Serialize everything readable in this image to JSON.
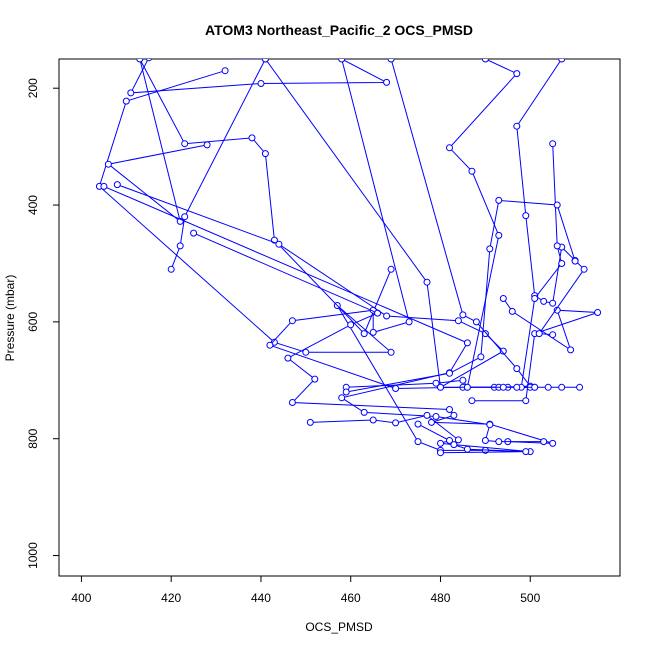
{
  "chart_data": {
    "type": "line",
    "title": "ATOM3 Northeast_Pacific_2 OCS_PMSD",
    "xlabel": "OCS_PMSD",
    "ylabel": "Pressure (mbar)",
    "xlim": [
      395,
      520
    ],
    "ylim": [
      1035,
      150
    ],
    "y_reversed": true,
    "x_ticks": [
      400,
      420,
      440,
      460,
      480,
      500
    ],
    "y_ticks": [
      200,
      400,
      600,
      800,
      1000
    ],
    "grid": false,
    "marker": "open-circle",
    "color": "#0000ff",
    "series": [
      {
        "points": [
          [
            432,
            170
          ],
          [
            410,
            222
          ],
          [
            404,
            368
          ],
          [
            443,
            635
          ],
          [
            450,
            652
          ],
          [
            469,
            652
          ],
          [
            457,
            572
          ],
          [
            475,
            805
          ],
          [
            480,
            820
          ],
          [
            490,
            820
          ],
          [
            500,
            822
          ],
          [
            480,
            808
          ],
          [
            482,
            803
          ],
          [
            475,
            775
          ]
        ]
      },
      {
        "points": [
          [
            428,
            297
          ],
          [
            406,
            330
          ],
          [
            422,
            428
          ],
          [
            413,
            150
          ],
          [
            423,
            295
          ],
          [
            438,
            285
          ],
          [
            441,
            312
          ],
          [
            443,
            460
          ],
          [
            463,
            620
          ],
          [
            469,
            510
          ]
        ]
      },
      {
        "points": [
          [
            420,
            510
          ],
          [
            422,
            470
          ],
          [
            423,
            420
          ],
          [
            441,
            150
          ],
          [
            415,
            148
          ],
          [
            411,
            208
          ],
          [
            440,
            192
          ],
          [
            468,
            190
          ],
          [
            458,
            150
          ],
          [
            473,
            600
          ],
          [
            465,
            618
          ],
          [
            465,
            580
          ],
          [
            447,
            598
          ],
          [
            442,
            640
          ],
          [
            470,
            714
          ],
          [
            485,
            712
          ]
        ]
      },
      {
        "points": [
          [
            425,
            448
          ],
          [
            466,
            585
          ],
          [
            460,
            605
          ],
          [
            446,
            662
          ],
          [
            452,
            698
          ],
          [
            447,
            738
          ],
          [
            482,
            750
          ],
          [
            483,
            760
          ],
          [
            478,
            772
          ],
          [
            491,
            775
          ],
          [
            505,
            808
          ],
          [
            495,
            805
          ]
        ]
      },
      {
        "points": [
          [
            408,
            365
          ],
          [
            444,
            467
          ],
          [
            468,
            590
          ],
          [
            484,
            598
          ],
          [
            490,
            620
          ],
          [
            494,
            650
          ],
          [
            480,
            712
          ]
        ]
      },
      {
        "points": [
          [
            405,
            368
          ],
          [
            486,
            636
          ],
          [
            482,
            687
          ],
          [
            458,
            730
          ],
          [
            463,
            755
          ],
          [
            479,
            762
          ],
          [
            491,
            776
          ],
          [
            490,
            803
          ],
          [
            493,
            805
          ],
          [
            503,
            805
          ]
        ]
      },
      {
        "points": [
          [
            441,
            150
          ],
          [
            477,
            532
          ],
          [
            480,
            712
          ],
          [
            492,
            712
          ],
          [
            495,
            712
          ],
          [
            501,
            712
          ],
          [
            504,
            712
          ],
          [
            507,
            712
          ],
          [
            511,
            712
          ]
        ]
      },
      {
        "points": [
          [
            494,
            560
          ],
          [
            496,
            582
          ],
          [
            509,
            648
          ],
          [
            506,
            580
          ],
          [
            515,
            584
          ],
          [
            501,
            620
          ],
          [
            499,
            735
          ],
          [
            487,
            735
          ]
        ]
      },
      {
        "points": [
          [
            469,
            150
          ],
          [
            485,
            588
          ],
          [
            488,
            600
          ],
          [
            497,
            680
          ],
          [
            500,
            710
          ],
          [
            493,
            712
          ],
          [
            486,
            712
          ],
          [
            485,
            700
          ],
          [
            479,
            705
          ],
          [
            459,
            712
          ]
        ]
      },
      {
        "points": [
          [
            490,
            150
          ],
          [
            497,
            175
          ],
          [
            482,
            302
          ],
          [
            487,
            342
          ],
          [
            493,
            452
          ],
          [
            486,
            712
          ],
          [
            500,
            712
          ],
          [
            494,
            712
          ]
        ]
      },
      {
        "points": [
          [
            507,
            150
          ],
          [
            497,
            265
          ],
          [
            499,
            418
          ],
          [
            501,
            555
          ],
          [
            503,
            565
          ],
          [
            505,
            568
          ],
          [
            507,
            472
          ],
          [
            510,
            495
          ],
          [
            512,
            510
          ],
          [
            502,
            620
          ],
          [
            505,
            622
          ]
        ]
      },
      {
        "points": [
          [
            505,
            295
          ],
          [
            506,
            470
          ],
          [
            507,
            500
          ],
          [
            501,
            560
          ],
          [
            498,
            712
          ],
          [
            501,
            712
          ],
          [
            497,
            712
          ]
        ]
      },
      {
        "points": [
          [
            459,
            720
          ],
          [
            482,
            688
          ],
          [
            489,
            660
          ],
          [
            491,
            475
          ],
          [
            493,
            392
          ],
          [
            506,
            400
          ],
          [
            510,
            496
          ]
        ]
      },
      {
        "points": [
          [
            451,
            772
          ],
          [
            465,
            768
          ],
          [
            470,
            773
          ],
          [
            477,
            760
          ],
          [
            484,
            802
          ],
          [
            483,
            810
          ],
          [
            486,
            818
          ],
          [
            499,
            822
          ],
          [
            480,
            824
          ]
        ]
      }
    ]
  }
}
